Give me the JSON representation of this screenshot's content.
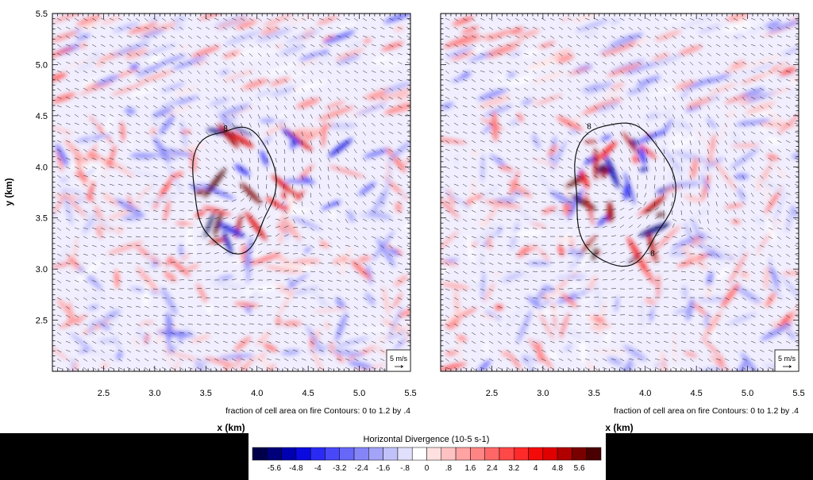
{
  "figure": {
    "ylabel": "y (km)",
    "xlabel": "x (km)",
    "contour_note": "fraction of cell area on fire Contours: 0 to 1.2 by .4",
    "vector_ref": "5 m/s",
    "contour_value_label": "8"
  },
  "colorbar": {
    "title": "Horizontal Divergence  (10-5 s-1)",
    "tick_labels": [
      "-5.6",
      "-4.8",
      "-4",
      "-3.2",
      "-2.4",
      "-1.6",
      "-.8",
      "0",
      ".8",
      "1.6",
      "2.4",
      "3.2",
      "4",
      "4.8",
      "5.6"
    ],
    "colors": [
      "#00004a",
      "#00007a",
      "#0000b0",
      "#0a0ae0",
      "#2a2af5",
      "#4848f8",
      "#6767f8",
      "#8585f8",
      "#a3a3f8",
      "#c2c2fa",
      "#e0e0fc",
      "#ffffff",
      "#ffe0e0",
      "#ffc2c2",
      "#ffa3a3",
      "#ff8585",
      "#ff6767",
      "#ff4848",
      "#ff2a2a",
      "#f50a0a",
      "#e00000",
      "#b00000",
      "#7a0000",
      "#4a0000"
    ]
  },
  "chart_data": [
    {
      "type": "heatmap",
      "title": "",
      "xlabel": "x (km)",
      "ylabel": "y (km)",
      "xlim": [
        2.0,
        5.5
      ],
      "ylim": [
        2.0,
        5.5
      ],
      "x_ticks": [
        2.5,
        3.0,
        3.5,
        4.0,
        4.5,
        5.0,
        5.5
      ],
      "y_ticks": [
        2.5,
        3.0,
        3.5,
        4.0,
        4.5,
        5.0,
        5.5
      ],
      "field": "Horizontal Divergence (10-5 s-1)",
      "vectors": true,
      "fire_contour": {
        "label": "8",
        "center": [
          3.77,
          3.8
        ],
        "x_range": [
          3.38,
          4.18
        ],
        "y_range": [
          3.15,
          4.37
        ]
      }
    },
    {
      "type": "heatmap",
      "title": "",
      "xlabel": "x (km)",
      "ylabel": "",
      "xlim": [
        2.0,
        5.5
      ],
      "ylim": [
        2.0,
        5.5
      ],
      "x_ticks": [
        2.5,
        3.0,
        3.5,
        4.0,
        4.5,
        5.0,
        5.5
      ],
      "y_ticks": [
        2.5,
        3.0,
        3.5,
        4.0,
        4.5,
        5.0,
        5.5
      ],
      "field": "Horizontal Divergence (10-5 s-1)",
      "vectors": true,
      "fire_contour": {
        "label": "8",
        "center": [
          3.77,
          3.75
        ],
        "x_range": [
          3.28,
          4.25
        ],
        "y_range": [
          3.05,
          4.45
        ]
      }
    }
  ]
}
